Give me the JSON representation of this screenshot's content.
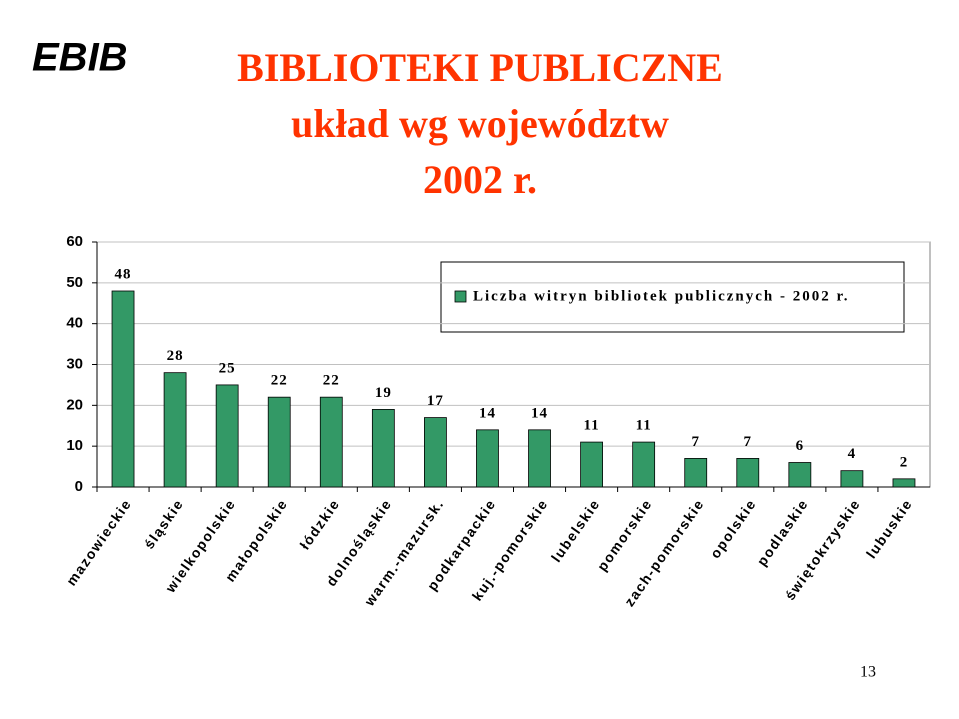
{
  "logo": "EBIB",
  "page_number": "13",
  "chart_data": {
    "type": "bar",
    "title_lines": [
      "BIBLIOTEKI PUBLICZNE",
      "układ wg województw",
      "2002 r."
    ],
    "categories": [
      "mazowieckie",
      "śląskie",
      "wielkopolskie",
      "małopolskie",
      "łódzkie",
      "dolnośląskie",
      "warm.-mazursk.",
      "podkarpackie",
      "kuj.-pomorskie",
      "lubelskie",
      "pomorskie",
      "zach-pomorskie",
      "opolskie",
      "podlaskie",
      "świętokrzyskie",
      "lubuskie"
    ],
    "series": [
      {
        "name": "Liczba witryn bibliotek publicznych - 2002 r.",
        "color": "#339966",
        "values": [
          48,
          28,
          25,
          22,
          22,
          19,
          17,
          14,
          14,
          11,
          11,
          7,
          7,
          6,
          4,
          2
        ]
      }
    ],
    "ylim": [
      0,
      60
    ],
    "yticks": [
      0,
      10,
      20,
      30,
      40,
      50,
      60
    ],
    "grid": true,
    "legend": "top-right"
  }
}
